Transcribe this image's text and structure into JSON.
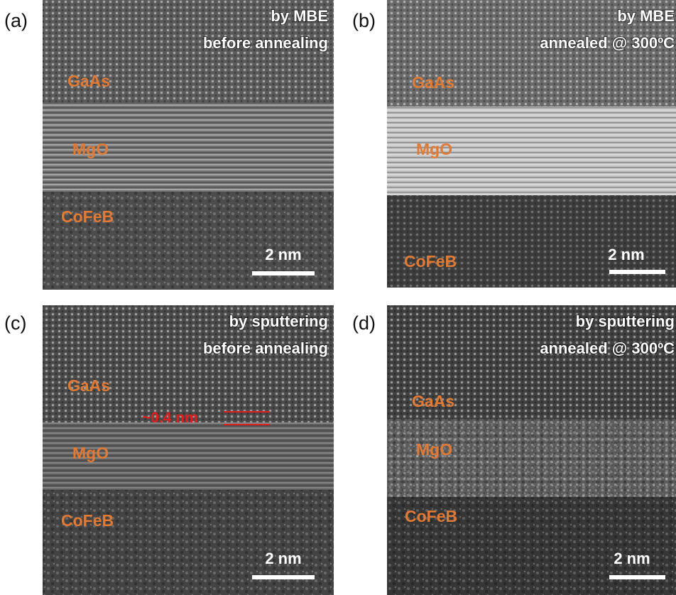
{
  "panels": [
    {
      "label": "(a)",
      "title": [
        "by MBE",
        "before annealing"
      ],
      "layers": [
        "GaAs",
        "MgO",
        "CoFeB"
      ],
      "scale_bar": "2 nm"
    },
    {
      "label": "(b)",
      "title": [
        "by MBE",
        "annealed @ 300ºC"
      ],
      "layers": [
        "GaAs",
        "MgO",
        "CoFeB"
      ],
      "scale_bar": "2 nm"
    },
    {
      "label": "(c)",
      "title": [
        "by sputtering",
        "before annealing"
      ],
      "layers": [
        "GaAs",
        "MgO",
        "CoFeB"
      ],
      "scale_bar": "2 nm",
      "annotation": "~0.4 nm"
    },
    {
      "label": "(d)",
      "title": [
        "by sputtering",
        "annealed @ 300ºC"
      ],
      "layers": [
        "GaAs",
        "MgO",
        "CoFeB"
      ],
      "scale_bar": "2 nm"
    }
  ]
}
